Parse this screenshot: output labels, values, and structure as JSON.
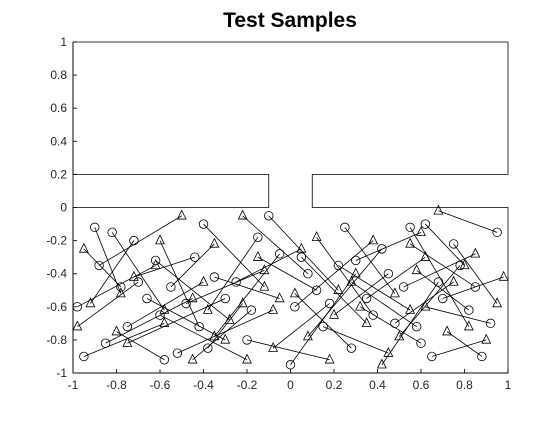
{
  "chart_data": {
    "type": "scatter",
    "title": "Test Samples",
    "xlabel": "",
    "ylabel": "",
    "xlim": [
      -1,
      1
    ],
    "ylim": [
      -1,
      1
    ],
    "grid": false,
    "legend": "none",
    "x_ticks": [
      "-1",
      "-0.8",
      "-0.6",
      "-0.4",
      "-0.2",
      "0",
      "0.2",
      "0.4",
      "0.6",
      "0.8",
      "1"
    ],
    "y_ticks": [
      "1",
      "0.8",
      "0.6",
      "0.4",
      "0.2",
      "0",
      "-0.2",
      "-0.4",
      "-0.6",
      "-0.8",
      "-1"
    ],
    "obstacle_outline": [
      [
        -1,
        1
      ],
      [
        1,
        1
      ],
      [
        1,
        0.2
      ],
      [
        0.1,
        0.2
      ],
      [
        0.1,
        0
      ],
      [
        1,
        0
      ],
      [
        1,
        -1
      ],
      [
        -1,
        -1
      ],
      [
        -1,
        0
      ],
      [
        -0.1,
        0
      ],
      [
        -0.1,
        0.2
      ],
      [
        -1,
        0.2
      ]
    ],
    "markers": {
      "start": "circle",
      "goal": "triangle",
      "color": "#000000"
    },
    "series": [
      {
        "pairs": [
          [
            -0.9,
            -0.12,
            -0.78,
            -0.52
          ],
          [
            -0.82,
            -0.15,
            -0.58,
            -0.62
          ],
          [
            -0.72,
            -0.2,
            -0.92,
            -0.58
          ],
          [
            -0.62,
            -0.32,
            -0.28,
            -0.68
          ],
          [
            -0.55,
            -0.48,
            -0.35,
            -0.22
          ],
          [
            -0.48,
            -0.58,
            -0.12,
            -0.38
          ],
          [
            -0.42,
            -0.72,
            -0.6,
            -0.2
          ],
          [
            -0.38,
            -0.85,
            -0.22,
            -0.58
          ],
          [
            -0.3,
            -0.55,
            -0.75,
            -0.82
          ],
          [
            -0.25,
            -0.45,
            0.05,
            -0.25
          ],
          [
            -0.18,
            -0.62,
            -0.45,
            -0.92
          ],
          [
            -0.1,
            -0.05,
            0.22,
            -0.5
          ],
          [
            -0.05,
            -0.28,
            -0.35,
            -0.78
          ],
          [
            0.02,
            -0.6,
            0.38,
            -0.2
          ],
          [
            0.08,
            -0.4,
            -0.22,
            -0.05
          ],
          [
            0.15,
            -0.72,
            0.45,
            -0.88
          ],
          [
            0.22,
            -0.35,
            0.55,
            -0.62
          ],
          [
            0.28,
            -0.85,
            0.02,
            -0.52
          ],
          [
            0.35,
            -0.55,
            0.62,
            -0.3
          ],
          [
            0.42,
            -0.25,
            0.08,
            -0.78
          ],
          [
            0.48,
            -0.7,
            0.75,
            -0.45
          ],
          [
            0.55,
            -0.12,
            0.82,
            -0.72
          ],
          [
            0.6,
            -0.82,
            0.32,
            -0.6
          ],
          [
            0.68,
            -0.45,
            0.42,
            -0.95
          ],
          [
            0.75,
            -0.22,
            0.95,
            -0.58
          ],
          [
            0.82,
            -0.62,
            0.58,
            -0.38
          ],
          [
            0.88,
            -0.9,
            0.72,
            -0.75
          ],
          [
            0.95,
            -0.15,
            0.68,
            -0.02
          ],
          [
            -0.95,
            -0.9,
            -0.58,
            -0.7
          ],
          [
            -0.85,
            -0.82,
            -0.45,
            -0.55
          ],
          [
            -0.7,
            -0.45,
            -0.98,
            -0.72
          ],
          [
            -0.6,
            -0.65,
            -0.2,
            -0.92
          ],
          [
            -0.52,
            -0.88,
            -0.08,
            -0.62
          ],
          [
            -0.44,
            -0.3,
            -0.72,
            -0.42
          ],
          [
            -0.2,
            -0.8,
            0.18,
            -0.92
          ],
          [
            0.0,
            -0.95,
            0.3,
            -0.4
          ],
          [
            0.12,
            -0.5,
            -0.15,
            -0.3
          ],
          [
            0.25,
            -0.12,
            0.48,
            -0.52
          ],
          [
            0.38,
            -0.65,
            0.12,
            -0.18
          ],
          [
            0.52,
            -0.48,
            0.85,
            -0.28
          ],
          [
            0.65,
            -0.9,
            0.9,
            -0.8
          ],
          [
            0.78,
            -0.35,
            0.5,
            -0.78
          ],
          [
            0.92,
            -0.7,
            0.62,
            -0.6
          ],
          [
            -0.98,
            -0.6,
            -0.62,
            -0.35
          ],
          [
            -0.75,
            -0.72,
            -0.4,
            -0.45
          ],
          [
            -0.66,
            -0.55,
            -0.3,
            -0.8
          ],
          [
            -0.58,
            -0.92,
            -0.8,
            -0.75
          ],
          [
            -0.35,
            -0.42,
            -0.05,
            -0.55
          ],
          [
            0.05,
            -0.3,
            0.35,
            -0.7
          ],
          [
            0.45,
            -0.4,
            0.2,
            -0.65
          ],
          [
            0.7,
            -0.55,
            0.98,
            -0.42
          ],
          [
            0.85,
            -0.48,
            0.55,
            -0.22
          ],
          [
            -0.88,
            -0.35,
            -0.5,
            -0.05
          ],
          [
            -0.4,
            -0.1,
            -0.12,
            -0.48
          ],
          [
            0.3,
            -0.32,
            0.6,
            -0.15
          ],
          [
            0.58,
            -0.72,
            0.28,
            -0.45
          ],
          [
            -0.15,
            -0.18,
            -0.38,
            -0.62
          ],
          [
            0.18,
            -0.58,
            -0.08,
            -0.85
          ],
          [
            0.62,
            -0.1,
            0.8,
            -0.35
          ],
          [
            -0.78,
            -0.48,
            -0.95,
            -0.25
          ]
        ]
      }
    ]
  }
}
